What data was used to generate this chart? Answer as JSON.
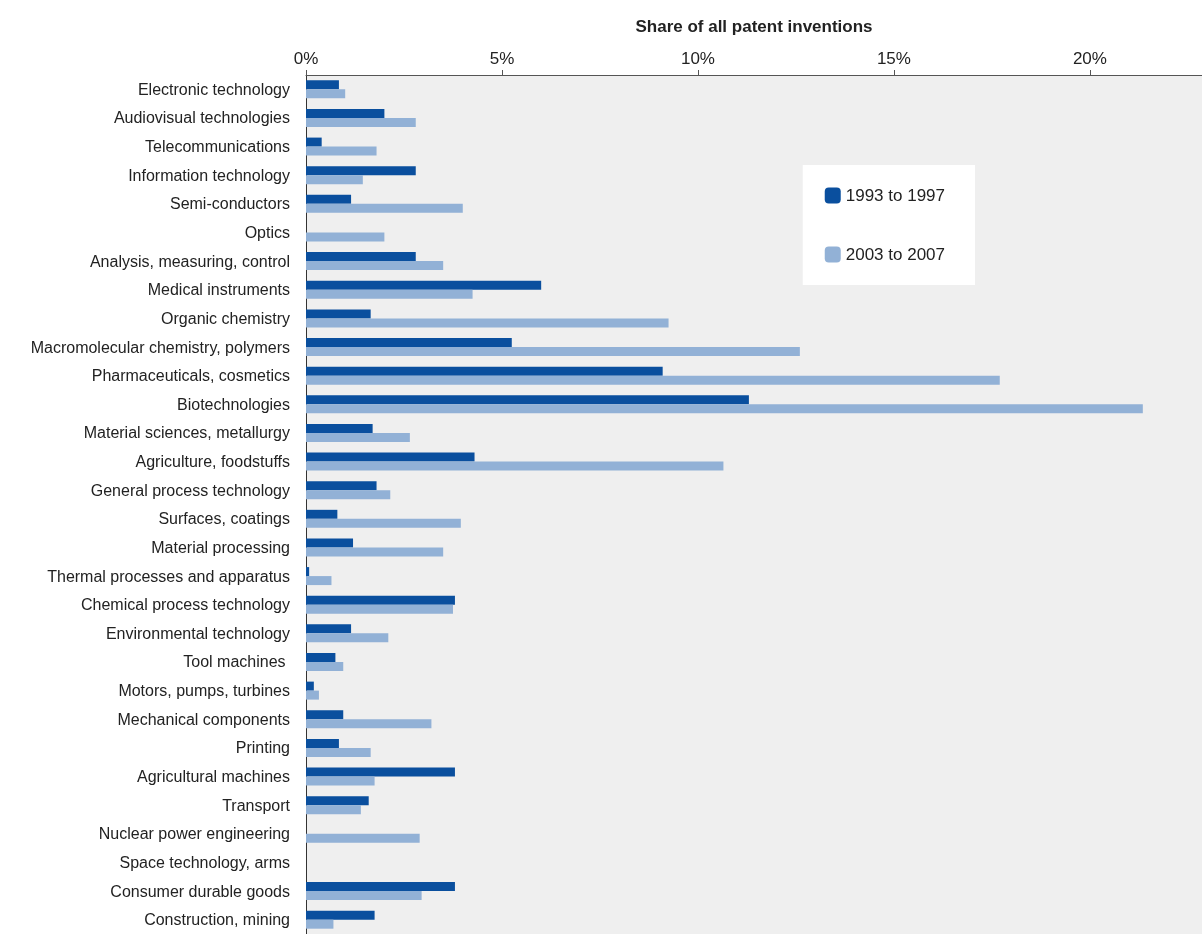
{
  "chart_data": {
    "type": "bar",
    "orientation": "horizontal",
    "xlabel": "Share of all patent inventions",
    "categories": [
      "Electronic technology",
      "Audiovisual technologies",
      "Telecommunications",
      "Information technology",
      "Semi-conductors",
      "Optics",
      "Analysis, measuring, control",
      "Medical instruments",
      "Organic chemistry",
      "Macromolecular chemistry, polymers",
      "Pharmaceuticals, cosmetics",
      "Biotechnologies",
      "Material sciences, metallurgy",
      "Agriculture, foodstuffs",
      "General process technology",
      "Surfaces, coatings",
      "Material processing",
      "Thermal processes and apparatus",
      "Chemical process technology",
      "Environmental technology",
      "Tool machines ",
      "Motors, pumps, turbines",
      "Mechanical components",
      "Printing",
      "Agricultural machines",
      "Transport",
      "Nuclear power engineering",
      "Space technology, arms",
      "Consumer durable goods",
      "Construction, mining"
    ],
    "series": [
      {
        "name": "1993 to 1997",
        "color": "#0a4f9e",
        "values": [
          0.84,
          2.0,
          0.4,
          2.8,
          1.15,
          0,
          2.8,
          6.0,
          1.65,
          5.25,
          9.1,
          11.3,
          1.7,
          4.3,
          1.8,
          0.8,
          1.2,
          0.08,
          3.8,
          1.15,
          0.75,
          0.2,
          0.95,
          0.84,
          3.8,
          1.6,
          0,
          0,
          3.8,
          1.75
        ]
      },
      {
        "name": "2003 to 2007",
        "color": "#92b1d6",
        "values": [
          1.0,
          2.8,
          1.8,
          1.45,
          4.0,
          2.0,
          3.5,
          4.25,
          9.25,
          12.6,
          17.7,
          21.35,
          2.65,
          10.65,
          2.15,
          3.95,
          3.5,
          0.65,
          3.75,
          2.1,
          0.95,
          0.33,
          3.2,
          1.65,
          1.75,
          1.4,
          2.9,
          0,
          2.95,
          0.7
        ]
      }
    ],
    "xlim": [
      0,
      22.86
    ],
    "xticks": [
      {
        "value": 0,
        "label": "0%"
      },
      {
        "value": 5,
        "label": "5%"
      },
      {
        "value": 10,
        "label": "10%"
      },
      {
        "value": 15,
        "label": "15%"
      },
      {
        "value": 20,
        "label": "20%"
      }
    ],
    "grid": false,
    "legend": "top right"
  }
}
